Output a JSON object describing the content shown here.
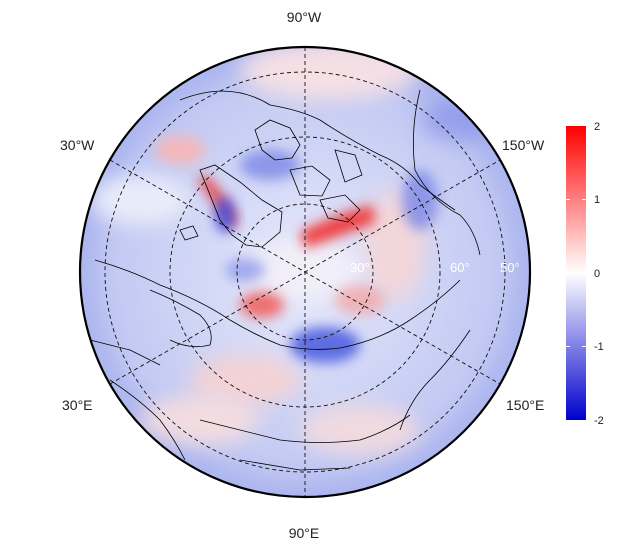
{
  "map": {
    "projection": "north polar stereographic",
    "graticule_style": "dashed",
    "longitude_labels": {
      "top": "90°W",
      "bottom": "90°E",
      "upper_left": "30°W",
      "lower_left": "30°E",
      "upper_right": "150°W",
      "lower_right": "150°E"
    },
    "latitude_labels": [
      "30°",
      "60°",
      "50°"
    ],
    "colors": {
      "negative": "#0000cc",
      "neutral": "#ffffff",
      "positive": "#ff0000",
      "coastline": "#000000",
      "graticule": "#000000"
    }
  },
  "colorbar": {
    "ticks": [
      "2",
      "1",
      "0",
      "-1",
      "-2"
    ],
    "min": -2,
    "max": 2
  }
}
